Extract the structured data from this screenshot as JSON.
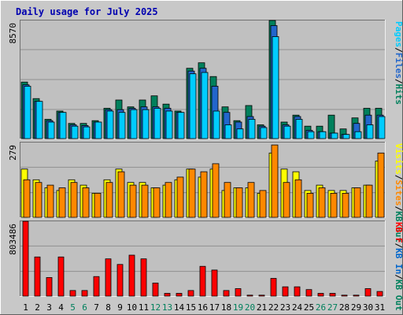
{
  "chart_data": {
    "type": "bar",
    "title": "Daily usage for July 2025",
    "categories": [
      "1",
      "2",
      "3",
      "4",
      "5",
      "6",
      "7",
      "8",
      "9",
      "10",
      "11",
      "12",
      "13",
      "14",
      "15",
      "16",
      "17",
      "18",
      "19",
      "20",
      "21",
      "22",
      "23",
      "24",
      "25",
      "26",
      "27",
      "28",
      "29",
      "30",
      "31"
    ],
    "weekend_days": [
      5,
      6,
      12,
      13,
      19,
      20,
      26,
      27
    ],
    "colors": {
      "title": "#0000b0",
      "axis_text": "#000000",
      "weekend_label": "#00805c",
      "plot_bg": "#c0c0c0",
      "gridline": "#909090",
      "pages": "#00ccff",
      "files": "#2266cc",
      "hits": "#00805c",
      "sites": "#ff8800",
      "visits": "#ffff00",
      "kb_out": "#00805c",
      "kb_in": "#0066cc",
      "kb_f": "#ff0000"
    },
    "panels": [
      {
        "id": "hits",
        "max_label": "8570",
        "ymax": 8570,
        "legend": [
          {
            "text": "Pages",
            "color": "#00ccff"
          },
          {
            "text": "/",
            "color": "#000000"
          },
          {
            "text": "Files",
            "color": "#2266cc"
          },
          {
            "text": "/",
            "color": "#000000"
          },
          {
            "text": "Hits",
            "color": "#00805c"
          }
        ],
        "series": [
          {
            "name": "Hits",
            "color": "#00805c",
            "values": [
              4100,
              2900,
              1400,
              2000,
              1100,
              1100,
              1300,
              2200,
              2800,
              2300,
              2800,
              3100,
              2500,
              2000,
              5100,
              5500,
              4500,
              2300,
              1300,
              2400,
              1000,
              8570,
              1200,
              1700,
              900,
              900,
              1700,
              700,
              1500,
              2200,
              2200
            ]
          },
          {
            "name": "Files",
            "color": "#2266cc",
            "values": [
              3900,
              2700,
              1300,
              1900,
              1000,
              950,
              1200,
              2100,
              2100,
              2200,
              2300,
              2300,
              2200,
              1900,
              4900,
              5100,
              3800,
              1900,
              1200,
              1600,
              900,
              8200,
              1000,
              1600,
              600,
              500,
              400,
              300,
              1100,
              1700,
              1700
            ]
          },
          {
            "name": "Pages",
            "color": "#00ccff",
            "values": [
              3800,
              2700,
              1200,
              1900,
              900,
              850,
              1200,
              2000,
              1900,
              2100,
              2100,
              2200,
              2000,
              1900,
              4700,
              4800,
              2000,
              1000,
              700,
              1400,
              800,
              7400,
              900,
              1400,
              500,
              500,
              400,
              300,
              500,
              1000,
              1600
            ]
          }
        ]
      },
      {
        "id": "visits",
        "max_label": "279",
        "ymax": 279,
        "legend": [
          {
            "text": "Visits",
            "color": "#ffff00"
          },
          {
            "text": "/",
            "color": "#000000"
          },
          {
            "text": "Sites",
            "color": "#ff8800"
          },
          {
            "text": "/",
            "color": "#000000"
          },
          {
            "text": "KB Out",
            "color": "#00805c"
          }
        ],
        "series": [
          {
            "name": "Visits",
            "color": "#ffff00",
            "values": [
              180,
              140,
              110,
              100,
              140,
              120,
              90,
              140,
              180,
              130,
              130,
              110,
              120,
              140,
              180,
              150,
              180,
              100,
              110,
              110,
              90,
              240,
              180,
              170,
              100,
              120,
              100,
              100,
              110,
              120,
              210
            ]
          },
          {
            "name": "Sites",
            "color": "#ff8800",
            "values": [
              140,
              130,
              120,
              110,
              130,
              110,
              90,
              130,
              170,
              120,
              120,
              110,
              130,
              150,
              180,
              170,
              200,
              130,
              110,
              130,
              100,
              270,
              130,
              140,
              90,
              110,
              90,
              90,
              110,
              120,
              240
            ]
          }
        ]
      },
      {
        "id": "kbytes",
        "max_label": "803486",
        "ymax": 803486,
        "legend": [
          {
            "text": "KB F",
            "color": "#ff0000"
          },
          {
            "text": "/",
            "color": "#000000"
          },
          {
            "text": "KB In",
            "color": "#0066cc"
          },
          {
            "text": "/",
            "color": "#000000"
          },
          {
            "text": "KB Out",
            "color": "#00805c"
          }
        ],
        "series": [
          {
            "name": "KB F",
            "color": "#ff0000",
            "values": [
              803486,
              420000,
              200000,
              420000,
              60000,
              60000,
              210000,
              400000,
              340000,
              440000,
              400000,
              140000,
              30000,
              30000,
              60000,
              320000,
              280000,
              60000,
              80000,
              10000,
              10000,
              190000,
              100000,
              100000,
              70000,
              30000,
              30000,
              10000,
              10000,
              80000,
              50000
            ]
          }
        ]
      }
    ]
  }
}
